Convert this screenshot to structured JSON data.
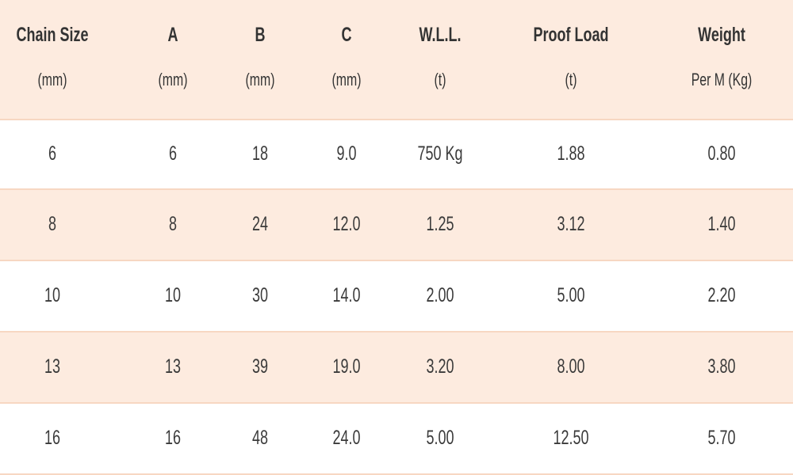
{
  "table": {
    "header": [
      [
        "Chain Size",
        "(mm)"
      ],
      [
        "A",
        "(mm)"
      ],
      [
        "B",
        "(mm)"
      ],
      [
        "C",
        "(mm)"
      ],
      [
        "W.L.L.",
        "(t)"
      ],
      [
        "Proof Load",
        "(t)"
      ],
      [
        "Weight",
        "Per M (Kg)"
      ]
    ],
    "rows": [
      [
        "6",
        "6",
        "18",
        "9.0",
        "750 Kg",
        "1.88",
        "0.80"
      ],
      [
        "8",
        "8",
        "24",
        "12.0",
        "1.25",
        "3.12",
        "1.40"
      ],
      [
        "10",
        "10",
        "30",
        "14.0",
        "2.00",
        "5.00",
        "2.20"
      ],
      [
        "13",
        "13",
        "39",
        "19.0",
        "3.20",
        "8.00",
        "3.80"
      ],
      [
        "16",
        "16",
        "48",
        "24.0",
        "5.00",
        "12.50",
        "5.70"
      ]
    ]
  }
}
